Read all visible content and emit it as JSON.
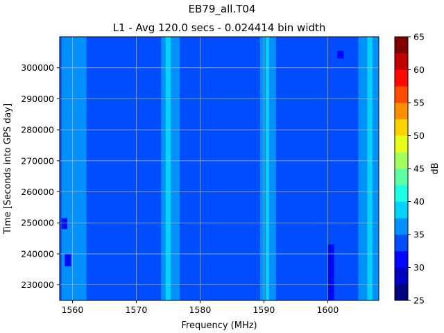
{
  "chart_data": {
    "type": "heatmap",
    "suptitle": "EB79_all.T04",
    "title": "L1 - Avg 120.0 secs - 0.024414 bin width",
    "xlabel": "Frequency (MHz)",
    "ylabel": "Time [Seconds into GPS day]",
    "colorbar_label": "dB",
    "xlim": [
      1558,
      1608
    ],
    "ylim": [
      225000,
      310000
    ],
    "xticks": [
      1560,
      1570,
      1580,
      1590,
      1600
    ],
    "yticks": [
      230000,
      240000,
      250000,
      260000,
      270000,
      280000,
      290000,
      300000
    ],
    "grid": true,
    "colormap": "jet",
    "color_levels": [
      25,
      27.5,
      30,
      32.5,
      35,
      37.5,
      40,
      42.5,
      45,
      47.5,
      50,
      52.5,
      55,
      57.5,
      60,
      62.5,
      65
    ],
    "colorbar_ticks": [
      25,
      30,
      35,
      40,
      45,
      50,
      55,
      60,
      65
    ],
    "background_level_db": 33.5,
    "bands": [
      {
        "freq_start": 1558.3,
        "freq_end": 1562.2,
        "level_db": 37
      },
      {
        "freq_start": 1573.9,
        "freq_end": 1576.8,
        "level_db": 37
      },
      {
        "freq_start": 1574.6,
        "freq_end": 1575.4,
        "level_db": 39
      },
      {
        "freq_start": 1589.4,
        "freq_end": 1591.9,
        "level_db": 37
      },
      {
        "freq_start": 1590.3,
        "freq_end": 1590.8,
        "level_db": 39
      },
      {
        "freq_start": 1604.8,
        "freq_end": 1608.0,
        "level_db": 37
      },
      {
        "freq_start": 1606.2,
        "freq_end": 1607.0,
        "level_db": 39
      }
    ],
    "low_patches": [
      {
        "freq_start": 1600.0,
        "freq_end": 1601.0,
        "time_start": 225000,
        "time_end": 243000,
        "level_db": 31
      },
      {
        "freq_start": 1601.5,
        "freq_end": 1602.5,
        "time_start": 303000,
        "time_end": 305500,
        "level_db": 31
      },
      {
        "freq_start": 1558.3,
        "freq_end": 1559.2,
        "time_start": 248000,
        "time_end": 251500,
        "level_db": 31
      },
      {
        "freq_start": 1558.8,
        "freq_end": 1559.8,
        "time_start": 236000,
        "time_end": 240000,
        "level_db": 31
      }
    ]
  }
}
